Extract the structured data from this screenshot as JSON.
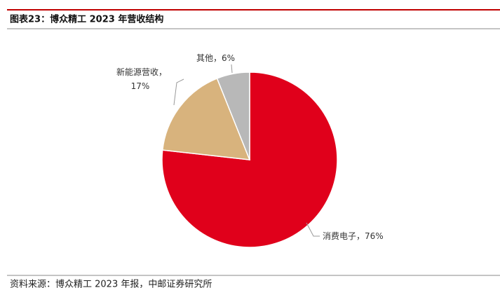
{
  "chart_data": {
    "type": "pie",
    "title": "图表23：博众精工 2023 年营收结构",
    "source": "资料来源：博众精工 2023 年报，中邮证券研究所",
    "categories": [
      "消费电子",
      "新能源营收",
      "其他"
    ],
    "label_separator": "，",
    "values": [
      76,
      17,
      6
    ],
    "value_labels": [
      "76%",
      "17%",
      "6%"
    ],
    "colors": [
      "#e0001b",
      "#d8b37d",
      "#b8b8b8"
    ]
  }
}
